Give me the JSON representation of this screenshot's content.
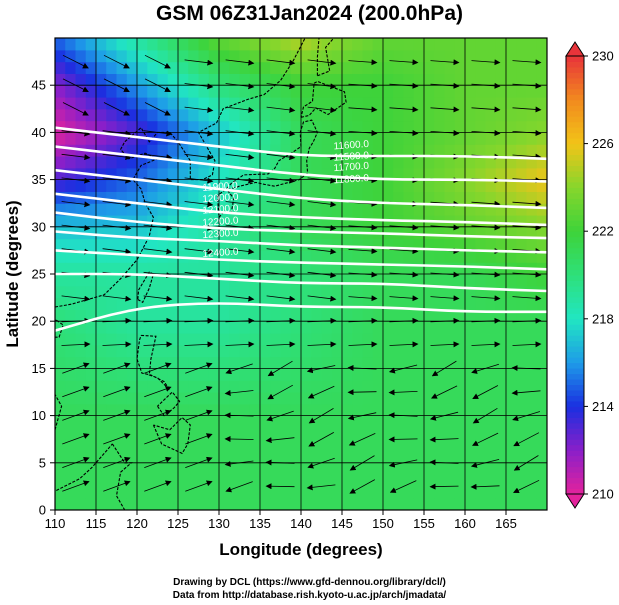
{
  "chart_data": {
    "type": "heatmap",
    "title": "GSM 06Z31Jan2024 (200.0hPa)",
    "xlabel": "Longitude (degrees)",
    "ylabel": "Latitude  (degrees)",
    "xlim": [
      110,
      170
    ],
    "ylim": [
      0,
      50
    ],
    "xticks": [
      110,
      115,
      120,
      125,
      130,
      135,
      140,
      145,
      150,
      155,
      160,
      165
    ],
    "yticks": [
      0,
      5,
      10,
      15,
      20,
      25,
      30,
      35,
      40,
      45
    ],
    "grid": true,
    "colorbar": {
      "ticks": [
        210,
        214,
        218,
        222,
        226,
        230
      ],
      "range": [
        210,
        230
      ],
      "colors": {
        "210": "#e4239c",
        "212": "#8a1fc9",
        "214": "#1a2fe0",
        "216": "#1e9be8",
        "218": "#21e6c2",
        "220": "#2ee07a",
        "222": "#3ed33a",
        "224": "#86d62c",
        "226": "#f2c418",
        "228": "#f28a1e",
        "230": "#e8343a"
      }
    },
    "temperature_field": {
      "lon": [
        110,
        120,
        130,
        140,
        150,
        160,
        170
      ],
      "lat": [
        0,
        10,
        20,
        25,
        30,
        35,
        40,
        45,
        50
      ],
      "values": [
        [
          221,
          221,
          221,
          221,
          221,
          221,
          221
        ],
        [
          221,
          221,
          221,
          221,
          221,
          221,
          221
        ],
        [
          220,
          219,
          219,
          220,
          221,
          221,
          221
        ],
        [
          219,
          219,
          219,
          220,
          221,
          221,
          222
        ],
        [
          217,
          217,
          219,
          221,
          222,
          223,
          224
        ],
        [
          213,
          215,
          218,
          221,
          222,
          224,
          226
        ],
        [
          210,
          213,
          217,
          221,
          222,
          223,
          224
        ],
        [
          212,
          216,
          220,
          222,
          222,
          223,
          223
        ],
        [
          215,
          219,
          223,
          225,
          223,
          223,
          223
        ]
      ]
    },
    "height_contours": [
      {
        "label": "11600.0",
        "points": [
          [
            110,
            40.5
          ],
          [
            120,
            39.5
          ],
          [
            130,
            38.5
          ],
          [
            140,
            37.5
          ],
          [
            150,
            37.5
          ],
          [
            160,
            37.5
          ],
          [
            170,
            37.2
          ]
        ]
      },
      {
        "label": "11700.0",
        "points": [
          [
            110,
            38.5
          ],
          [
            120,
            37.5
          ],
          [
            130,
            36.5
          ],
          [
            140,
            35.5
          ],
          [
            150,
            35
          ],
          [
            160,
            35
          ],
          [
            170,
            34.8
          ]
        ]
      },
      {
        "label": "11800.0",
        "points": [
          [
            110,
            36
          ],
          [
            120,
            35
          ],
          [
            130,
            34
          ],
          [
            140,
            33
          ],
          [
            150,
            32.5
          ],
          [
            160,
            32.3
          ],
          [
            170,
            32
          ]
        ]
      },
      {
        "label": "11900.0",
        "points": [
          [
            110,
            33.5
          ],
          [
            120,
            32.5
          ],
          [
            130,
            31.5
          ],
          [
            140,
            31
          ],
          [
            150,
            30.7
          ],
          [
            160,
            30.5
          ],
          [
            170,
            30.2
          ]
        ]
      },
      {
        "label": "12000.0",
        "points": [
          [
            110,
            31.5
          ],
          [
            120,
            30.5
          ],
          [
            130,
            29.8
          ],
          [
            140,
            29.5
          ],
          [
            150,
            29.3
          ],
          [
            160,
            29
          ],
          [
            170,
            28.8
          ]
        ]
      },
      {
        "label": "12100.0",
        "points": [
          [
            110,
            29.5
          ],
          [
            120,
            28.8
          ],
          [
            130,
            28.5
          ],
          [
            140,
            28
          ],
          [
            150,
            27.8
          ],
          [
            160,
            27.5
          ],
          [
            170,
            27.3
          ]
        ]
      },
      {
        "label": "12200.0",
        "points": [
          [
            110,
            27.5
          ],
          [
            120,
            27
          ],
          [
            130,
            26.5
          ],
          [
            140,
            26.2
          ],
          [
            150,
            26
          ],
          [
            160,
            25.8
          ],
          [
            170,
            25.5
          ]
        ]
      },
      {
        "label": "12300.0",
        "points": [
          [
            110,
            25
          ],
          [
            120,
            25
          ],
          [
            130,
            24.5
          ],
          [
            140,
            24
          ],
          [
            150,
            24
          ],
          [
            160,
            23.5
          ],
          [
            170,
            23.2
          ]
        ]
      },
      {
        "label": "12400.0",
        "points": [
          [
            110,
            19
          ],
          [
            120,
            21.5
          ],
          [
            130,
            22
          ],
          [
            140,
            21.5
          ],
          [
            150,
            21.5
          ],
          [
            160,
            21
          ],
          [
            170,
            21
          ]
        ]
      }
    ],
    "contour_labels": [
      "11600.0",
      "11500.0",
      "11700.0",
      "11800.0",
      "11900.0",
      "12000.0",
      "12100.0",
      "12200.0",
      "12300.0",
      "12400.0"
    ]
  },
  "credits": {
    "line1": "Drawing by DCL (https://www.gfd-dennou.org/library/dcl/)",
    "line2": "Data from http://database.rish.kyoto-u.ac.jp/arch/jmadata/"
  }
}
